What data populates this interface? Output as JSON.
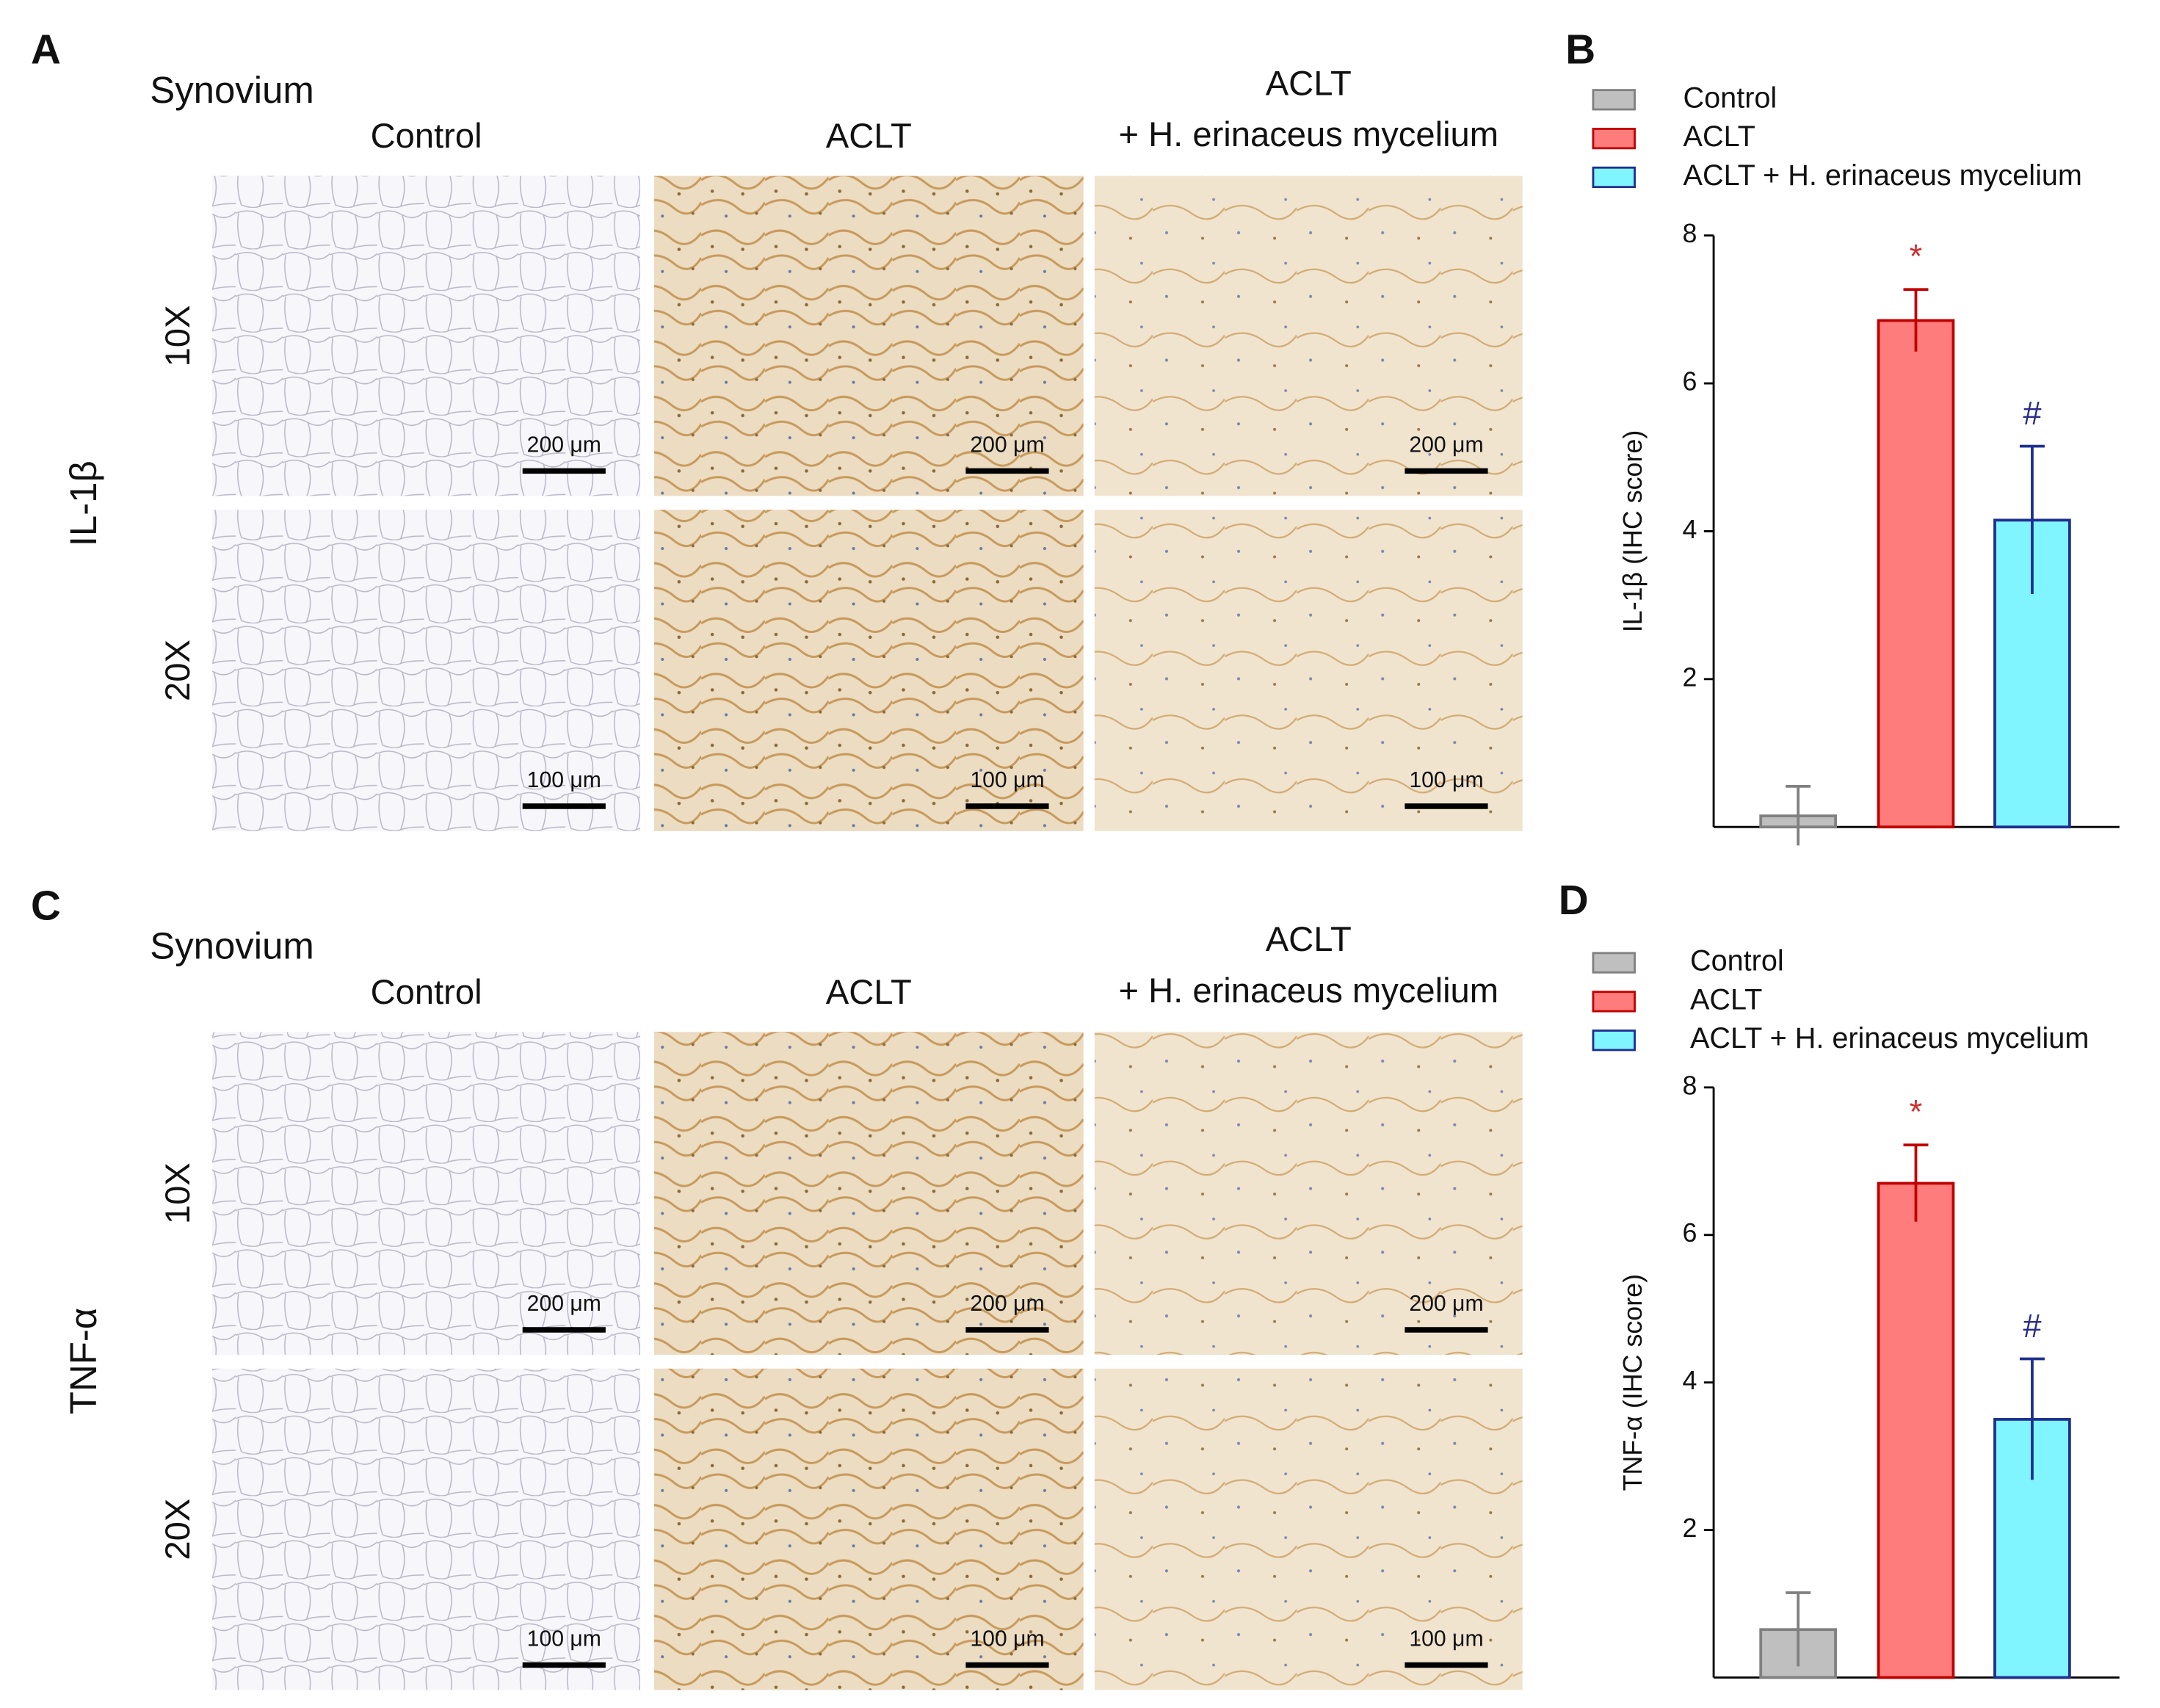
{
  "panel_a": {
    "label": "A",
    "tissue": "Synovium",
    "marker": "IL-1β",
    "columns": [
      [
        "Control"
      ],
      [
        "ACLT"
      ],
      [
        "ACLT",
        "+ H. erinaceus mycelium"
      ]
    ],
    "rows": [
      "10X",
      "20X"
    ],
    "scale_bars": [
      [
        "200 μm",
        "200 μm",
        "200 μm"
      ],
      [
        "100 μm",
        "100 μm",
        "100 μm"
      ]
    ]
  },
  "panel_c": {
    "label": "C",
    "tissue": "Synovium",
    "marker": "TNF-α",
    "columns": [
      [
        "Control"
      ],
      [
        "ACLT"
      ],
      [
        "ACLT",
        "+ H. erinaceus mycelium"
      ]
    ],
    "rows": [
      "10X",
      "20X"
    ],
    "scale_bars": [
      [
        "200 μm",
        "200 μm",
        "200 μm"
      ],
      [
        "100 μm",
        "100 μm",
        "100 μm"
      ]
    ]
  },
  "chart_data": [
    {
      "type": "bar",
      "panel_label": "B",
      "y_label": "IL-1β (IHC score)",
      "categories": [
        "Control",
        "ACLT",
        "ACLT + H. erinaceus mycelium"
      ],
      "values": [
        0.15,
        6.85,
        4.15
      ],
      "errors": [
        0.4,
        0.42,
        1.0
      ],
      "colors": [
        "#bfbfbf",
        "#ff7c7c",
        "#80f4ff"
      ],
      "edge_colors": [
        "#808080",
        "#c00000",
        "#1f2f8f"
      ],
      "value_annotations": [
        null,
        "*",
        "#"
      ],
      "value_annotation_colors": [
        null,
        "#d03030",
        "#2a2a8a"
      ],
      "ylim": [
        0,
        8
      ],
      "yticks": [
        2,
        4,
        6,
        8
      ]
    },
    {
      "type": "bar",
      "panel_label": "D",
      "y_label": "TNF-α (IHC score)",
      "categories": [
        "Control",
        "ACLT",
        "ACLT + H. erinaceus mycelium"
      ],
      "values": [
        0.65,
        6.7,
        3.5
      ],
      "errors": [
        0.5,
        0.52,
        0.82
      ],
      "colors": [
        "#bfbfbf",
        "#ff7c7c",
        "#80f4ff"
      ],
      "edge_colors": [
        "#808080",
        "#c00000",
        "#1f2f8f"
      ],
      "value_annotations": [
        null,
        "*",
        "#"
      ],
      "value_annotation_colors": [
        null,
        "#d03030",
        "#2a2a8a"
      ],
      "ylim": [
        0,
        8
      ],
      "yticks": [
        2,
        4,
        6,
        8
      ]
    }
  ]
}
